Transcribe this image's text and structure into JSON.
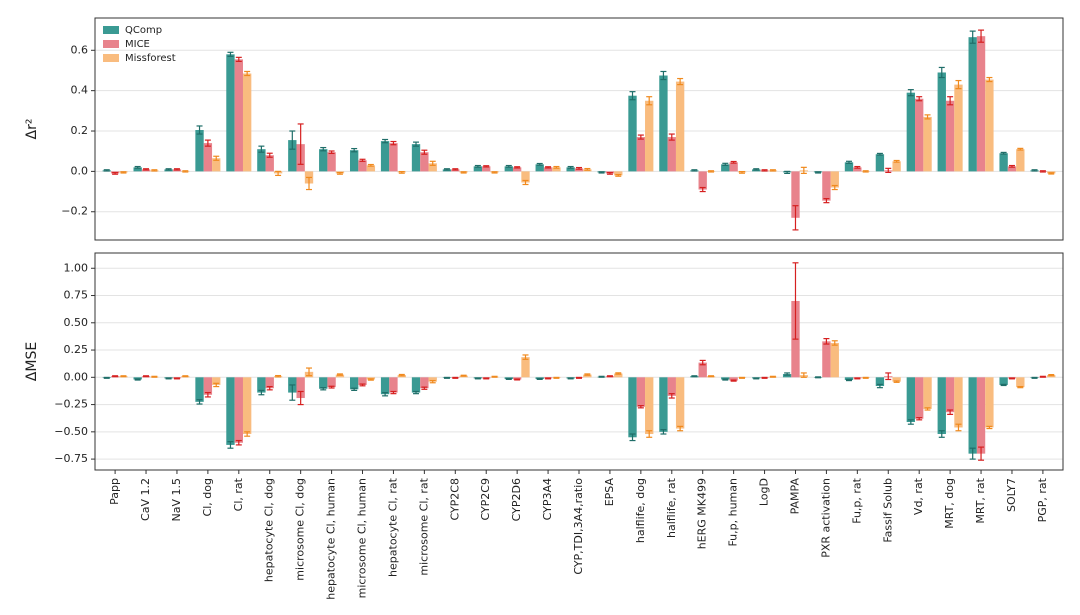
{
  "chart_data": [
    {
      "type": "bar",
      "ylabel": "Δr²",
      "ylim": [
        -0.34,
        0.76
      ],
      "yticks": [
        {
          "value": -0.2,
          "label": "−0.2"
        },
        {
          "value": 0,
          "label": "0.0"
        },
        {
          "value": 0.2,
          "label": "0.2"
        },
        {
          "value": 0.4,
          "label": "0.4"
        },
        {
          "value": 0.6,
          "label": "0.6"
        }
      ],
      "grid": true,
      "legend": "upper left",
      "series": [
        {
          "name": "QComp",
          "color": "#3a9a93",
          "error_color": "#1f6e69",
          "values": [
            0.005,
            0.02,
            0.01,
            0.205,
            0.58,
            0.11,
            0.155,
            0.11,
            0.105,
            0.15,
            0.135,
            0.01,
            0.025,
            0.025,
            0.035,
            0.02,
            -0.005,
            0.375,
            0.475,
            0.005,
            0.035,
            0.01,
            -0.005,
            -0.005,
            0.045,
            0.085,
            0.39,
            0.49,
            0.665,
            0.09,
            0.005
          ],
          "errors": [
            0.003,
            0.004,
            0.003,
            0.02,
            0.01,
            0.015,
            0.045,
            0.008,
            0.008,
            0.008,
            0.01,
            0.003,
            0.004,
            0.004,
            0.004,
            0.004,
            0.003,
            0.02,
            0.02,
            0.003,
            0.005,
            0.003,
            0.005,
            0.003,
            0.005,
            0.004,
            0.015,
            0.025,
            0.03,
            0.004,
            0.003
          ]
        },
        {
          "name": "MICE",
          "color": "#e8838c",
          "error_color": "#d62020",
          "values": [
            -0.01,
            0.01,
            0.01,
            0.14,
            0.555,
            0.08,
            0.135,
            0.095,
            0.055,
            0.14,
            0.095,
            0.01,
            0.025,
            0.02,
            0.02,
            0.015,
            -0.01,
            0.17,
            0.17,
            -0.09,
            0.045,
            0.005,
            -0.23,
            -0.145,
            0.02,
            0.005,
            0.36,
            0.35,
            0.67,
            0.025,
            0.0
          ],
          "errors": [
            0.004,
            0.003,
            0.003,
            0.015,
            0.01,
            0.01,
            0.1,
            0.006,
            0.005,
            0.008,
            0.01,
            0.003,
            0.003,
            0.003,
            0.003,
            0.004,
            0.004,
            0.01,
            0.015,
            0.01,
            0.004,
            0.003,
            0.06,
            0.01,
            0.004,
            0.01,
            0.01,
            0.02,
            0.03,
            0.004,
            0.003
          ]
        },
        {
          "name": "Missforest",
          "color": "#f9bc7f",
          "error_color": "#f08a1e",
          "values": [
            -0.005,
            0.005,
            0.0,
            0.065,
            0.485,
            -0.01,
            -0.06,
            -0.01,
            0.03,
            -0.005,
            0.04,
            -0.005,
            -0.005,
            -0.055,
            0.02,
            0.01,
            -0.02,
            0.35,
            0.445,
            0.0,
            -0.005,
            0.005,
            0.005,
            -0.08,
            0.0,
            0.05,
            0.27,
            0.43,
            0.455,
            0.11,
            -0.01
          ],
          "errors": [
            0.003,
            0.003,
            0.003,
            0.01,
            0.01,
            0.01,
            0.03,
            0.004,
            0.004,
            0.004,
            0.01,
            0.003,
            0.003,
            0.01,
            0.004,
            0.004,
            0.004,
            0.02,
            0.015,
            0.003,
            0.004,
            0.003,
            0.015,
            0.01,
            0.003,
            0.004,
            0.01,
            0.02,
            0.01,
            0.004,
            0.003
          ]
        }
      ]
    },
    {
      "type": "bar",
      "ylabel": "ΔMSE",
      "ylim": [
        -0.85,
        1.14
      ],
      "yticks": [
        {
          "value": -0.75,
          "label": "−0.75"
        },
        {
          "value": -0.5,
          "label": "−0.50"
        },
        {
          "value": -0.25,
          "label": "−0.25"
        },
        {
          "value": 0,
          "label": "0.00"
        },
        {
          "value": 0.25,
          "label": "0.25"
        },
        {
          "value": 0.5,
          "label": "0.50"
        },
        {
          "value": 0.75,
          "label": "0.75"
        },
        {
          "value": 1,
          "label": "1.00"
        }
      ],
      "grid": true,
      "categories": [
        "Papp",
        "CaV 1.2",
        "NaV 1.5",
        "Cl, dog",
        "Cl, rat",
        "hepatocyte Cl, dog",
        "microsome Cl, dog",
        "hepatocyte Cl, human",
        "microsome Cl, human",
        "hepatocyte Cl, rat",
        "microsome Cl, rat",
        "CYP2C8",
        "CYP2C9",
        "CYP2D6",
        "CYP3A4",
        "CYP,TDI,3A4,ratio",
        "EPSA",
        "halflife, dog",
        "halflife, rat",
        "hERG MK499",
        "Fu,p, human",
        "LogD",
        "PAMPA",
        "PXR activation",
        "Fu,p, rat",
        "Fassif Solub",
        "Vd, rat",
        "MRT, dog",
        "MRT, rat",
        "SOLY7",
        "PGP, rat"
      ],
      "series": [
        {
          "color": "#3a9a93",
          "error_color": "#1f6e69",
          "values": [
            -0.005,
            -0.02,
            -0.01,
            -0.225,
            -0.62,
            -0.14,
            -0.14,
            -0.105,
            -0.11,
            -0.155,
            -0.14,
            -0.005,
            -0.01,
            -0.015,
            -0.015,
            -0.01,
            0.005,
            -0.55,
            -0.5,
            0.01,
            -0.02,
            -0.01,
            0.03,
            0.0,
            -0.025,
            -0.08,
            -0.41,
            -0.52,
            -0.7,
            -0.07,
            -0.005
          ],
          "errors": [
            0.004,
            0.005,
            0.004,
            0.02,
            0.03,
            0.02,
            0.07,
            0.01,
            0.01,
            0.015,
            0.01,
            0.004,
            0.004,
            0.004,
            0.004,
            0.004,
            0.004,
            0.03,
            0.02,
            0.004,
            0.005,
            0.004,
            0.01,
            0.004,
            0.005,
            0.015,
            0.02,
            0.03,
            0.05,
            0.005,
            0.004
          ]
        },
        {
          "color": "#e8838c",
          "error_color": "#d62020",
          "values": [
            0.01,
            0.01,
            -0.01,
            -0.16,
            -0.6,
            -0.1,
            -0.19,
            -0.09,
            -0.07,
            -0.14,
            -0.1,
            -0.005,
            -0.01,
            -0.02,
            -0.01,
            -0.005,
            0.01,
            -0.27,
            -0.17,
            0.135,
            -0.03,
            -0.005,
            0.7,
            0.33,
            -0.01,
            0.01,
            -0.38,
            -0.32,
            -0.7,
            -0.01,
            0.005
          ],
          "errors": [
            0.004,
            0.004,
            0.004,
            0.02,
            0.02,
            0.015,
            0.06,
            0.008,
            0.008,
            0.01,
            0.01,
            0.004,
            0.004,
            0.004,
            0.004,
            0.004,
            0.004,
            0.01,
            0.02,
            0.02,
            0.005,
            0.004,
            0.35,
            0.025,
            0.004,
            0.03,
            0.01,
            0.02,
            0.06,
            0.004,
            0.004
          ]
        },
        {
          "color": "#f9bc7f",
          "error_color": "#f08a1e",
          "values": [
            0.01,
            0.005,
            0.01,
            -0.07,
            -0.52,
            0.01,
            0.05,
            0.025,
            -0.02,
            0.02,
            -0.04,
            0.015,
            0.005,
            0.185,
            -0.005,
            0.025,
            0.035,
            -0.52,
            -0.47,
            0.01,
            -0.005,
            0.005,
            0.02,
            0.315,
            -0.005,
            -0.04,
            -0.29,
            -0.46,
            -0.46,
            -0.09,
            0.02
          ],
          "errors": [
            0.004,
            0.004,
            0.004,
            0.015,
            0.02,
            0.006,
            0.035,
            0.006,
            0.006,
            0.006,
            0.01,
            0.004,
            0.004,
            0.02,
            0.004,
            0.006,
            0.006,
            0.03,
            0.02,
            0.004,
            0.004,
            0.004,
            0.02,
            0.02,
            0.004,
            0.006,
            0.01,
            0.03,
            0.01,
            0.005,
            0.005
          ]
        }
      ]
    }
  ]
}
